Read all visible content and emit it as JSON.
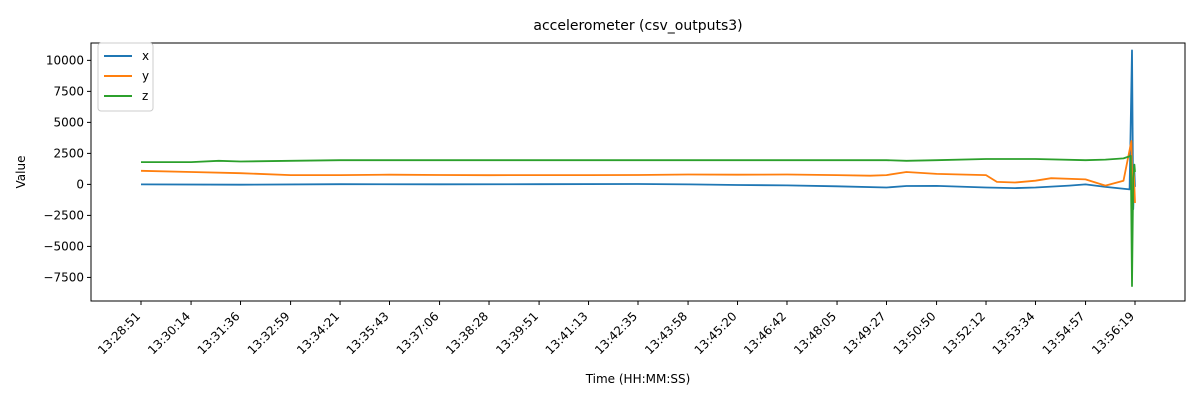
{
  "chart_data": {
    "type": "line",
    "title": "accelerometer (csv_outputs3)",
    "xlabel": "Time (HH:MM:SS)",
    "ylabel": "Value",
    "x_ticks": [
      "13:28:51",
      "13:30:14",
      "13:31:36",
      "13:32:59",
      "13:34:21",
      "13:35:43",
      "13:37:06",
      "13:38:28",
      "13:39:51",
      "13:41:13",
      "13:42:35",
      "13:43:58",
      "13:45:20",
      "13:46:42",
      "13:48:05",
      "13:49:27",
      "13:50:50",
      "13:52:12",
      "13:53:34",
      "13:54:57",
      "13:56:19"
    ],
    "xlim": [
      "13:28:51",
      "13:56:19"
    ],
    "y_ticks": [
      -7500,
      -5000,
      -2500,
      0,
      2500,
      5000,
      7500,
      10000
    ],
    "ylim": [
      -9400,
      11400
    ],
    "grid": false,
    "legend_position": "top-left",
    "series": [
      {
        "name": "x",
        "color": "#1f77b4",
        "points": [
          [
            "13:28:51",
            0
          ],
          [
            "13:31:36",
            -20
          ],
          [
            "13:34:21",
            20
          ],
          [
            "13:37:06",
            10
          ],
          [
            "13:39:51",
            20
          ],
          [
            "13:42:35",
            30
          ],
          [
            "13:44:00",
            0
          ],
          [
            "13:45:20",
            -50
          ],
          [
            "13:46:42",
            -80
          ],
          [
            "13:48:05",
            -150
          ],
          [
            "13:49:27",
            -250
          ],
          [
            "13:50:00",
            -130
          ],
          [
            "13:50:50",
            -120
          ],
          [
            "13:52:12",
            -250
          ],
          [
            "13:53:00",
            -300
          ],
          [
            "13:53:34",
            -250
          ],
          [
            "13:54:30",
            -100
          ],
          [
            "13:54:57",
            0
          ],
          [
            "13:55:30",
            -200
          ],
          [
            "13:56:10",
            -400
          ],
          [
            "13:56:14",
            10800
          ],
          [
            "13:56:16",
            -2000
          ],
          [
            "13:56:18",
            1000
          ],
          [
            "13:56:19",
            -200
          ]
        ]
      },
      {
        "name": "y",
        "color": "#ff7f0e",
        "points": [
          [
            "13:28:51",
            1100
          ],
          [
            "13:30:14",
            1000
          ],
          [
            "13:31:36",
            900
          ],
          [
            "13:32:59",
            750
          ],
          [
            "13:34:21",
            750
          ],
          [
            "13:35:43",
            780
          ],
          [
            "13:37:06",
            760
          ],
          [
            "13:38:28",
            740
          ],
          [
            "13:39:51",
            750
          ],
          [
            "13:41:13",
            750
          ],
          [
            "13:42:35",
            760
          ],
          [
            "13:43:58",
            800
          ],
          [
            "13:45:20",
            780
          ],
          [
            "13:46:42",
            800
          ],
          [
            "13:48:05",
            750
          ],
          [
            "13:49:00",
            700
          ],
          [
            "13:49:27",
            750
          ],
          [
            "13:50:00",
            1000
          ],
          [
            "13:50:50",
            850
          ],
          [
            "13:51:30",
            800
          ],
          [
            "13:52:12",
            750
          ],
          [
            "13:52:30",
            200
          ],
          [
            "13:53:00",
            150
          ],
          [
            "13:53:34",
            300
          ],
          [
            "13:54:00",
            500
          ],
          [
            "13:54:57",
            400
          ],
          [
            "13:55:30",
            -100
          ],
          [
            "13:56:00",
            300
          ],
          [
            "13:56:13",
            3500
          ],
          [
            "13:56:15",
            -1500
          ],
          [
            "13:56:17",
            1000
          ],
          [
            "13:56:19",
            -1500
          ]
        ]
      },
      {
        "name": "z",
        "color": "#2ca02c",
        "points": [
          [
            "13:28:51",
            1800
          ],
          [
            "13:30:14",
            1800
          ],
          [
            "13:31:00",
            1900
          ],
          [
            "13:31:36",
            1850
          ],
          [
            "13:32:59",
            1900
          ],
          [
            "13:34:21",
            1950
          ],
          [
            "13:37:06",
            1950
          ],
          [
            "13:39:51",
            1950
          ],
          [
            "13:42:35",
            1950
          ],
          [
            "13:45:20",
            1950
          ],
          [
            "13:46:42",
            1950
          ],
          [
            "13:48:05",
            1950
          ],
          [
            "13:49:27",
            1950
          ],
          [
            "13:50:00",
            1900
          ],
          [
            "13:50:50",
            1950
          ],
          [
            "13:52:12",
            2050
          ],
          [
            "13:53:34",
            2050
          ],
          [
            "13:54:57",
            1950
          ],
          [
            "13:55:30",
            2000
          ],
          [
            "13:56:00",
            2100
          ],
          [
            "13:56:12",
            2300
          ],
          [
            "13:56:14",
            -8200
          ],
          [
            "13:56:16",
            500
          ],
          [
            "13:56:18",
            1600
          ],
          [
            "13:56:19",
            1000
          ]
        ]
      }
    ]
  }
}
